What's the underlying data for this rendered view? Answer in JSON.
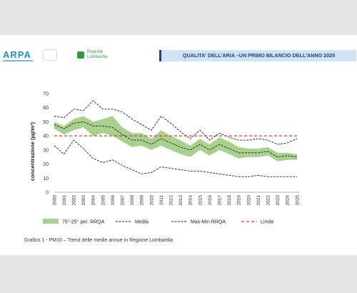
{
  "header": {
    "logo_left": "ARPA",
    "logo_region_line1": "Regione",
    "logo_region_line2": "Lombardia",
    "title": "QUALITA' DELL'ARIA –UN PRIMO BILANCIO DELL'ANNO 2025"
  },
  "caption": "Grafico 1 - PM10 – Trend delle medie annue in Regione Lombardia",
  "colors": {
    "band": "#a9d18e",
    "media": "#222222",
    "maxmin": "#222222",
    "limite": "#e03c31"
  },
  "chart_data": {
    "type": "line",
    "ylabel": "concentrazione (µg/m³)",
    "xlabel": "",
    "ylim": [
      0,
      70
    ],
    "yticks": [
      0,
      10,
      20,
      30,
      40,
      50,
      60,
      70
    ],
    "x": [
      "2000",
      "2001",
      "2002",
      "2003",
      "2004",
      "2005",
      "2006",
      "2007",
      "2008",
      "2009",
      "2010",
      "2011",
      "2012",
      "2013",
      "2014",
      "2015",
      "2016",
      "2017",
      "2018",
      "2019",
      "2020",
      "2021",
      "2022",
      "2023",
      "2024",
      "2025"
    ],
    "band": {
      "name": "75°-25° per. RRQA",
      "upper": [
        50,
        47,
        52,
        54,
        50,
        52,
        54,
        46,
        42,
        42,
        38,
        44,
        40,
        37,
        33,
        38,
        34,
        39,
        36,
        32,
        31,
        31,
        32,
        28,
        28,
        27
      ],
      "lower": [
        45,
        41,
        44,
        46,
        40,
        42,
        40,
        36,
        32,
        33,
        30,
        33,
        30,
        27,
        25,
        30,
        26,
        30,
        27,
        24,
        25,
        25,
        26,
        22,
        23,
        23
      ]
    },
    "series": [
      {
        "name": "Media",
        "style": "dashed",
        "values": [
          48,
          45,
          49,
          50,
          47,
          47,
          46,
          41,
          37,
          37,
          34,
          38,
          35,
          32,
          30,
          34,
          30,
          34,
          31,
          28,
          28,
          28,
          29,
          25,
          26,
          25
        ]
      },
      {
        "name": "Max-Min RRQA",
        "style": "dashed",
        "values": [
          54,
          53,
          59,
          58,
          65,
          59,
          59,
          57,
          52,
          48,
          44,
          54,
          49,
          43,
          38,
          44,
          37,
          42,
          39,
          37,
          37,
          38,
          37,
          34,
          35,
          38
        ]
      },
      {
        "name": "Max-Min RRQA",
        "style": "dashed",
        "legend": false,
        "values": [
          33,
          27,
          37,
          31,
          24,
          21,
          23,
          19,
          16,
          13,
          14,
          18,
          17,
          16,
          15,
          15,
          14,
          13,
          12,
          11,
          11,
          12,
          11,
          11,
          11,
          11
        ]
      },
      {
        "name": "Limite",
        "style": "dashed-red",
        "values": [
          40,
          40,
          40,
          40,
          40,
          40,
          40,
          40,
          40,
          40,
          40,
          40,
          40,
          40,
          40,
          40,
          40,
          40,
          40,
          40,
          40,
          40,
          40,
          40,
          40,
          40
        ]
      }
    ],
    "legend": [
      "75°-25° per. RRQA",
      "Media",
      "Max-Min RRQA",
      "Limite"
    ],
    "legend_placement": "bottom",
    "grid": false
  }
}
